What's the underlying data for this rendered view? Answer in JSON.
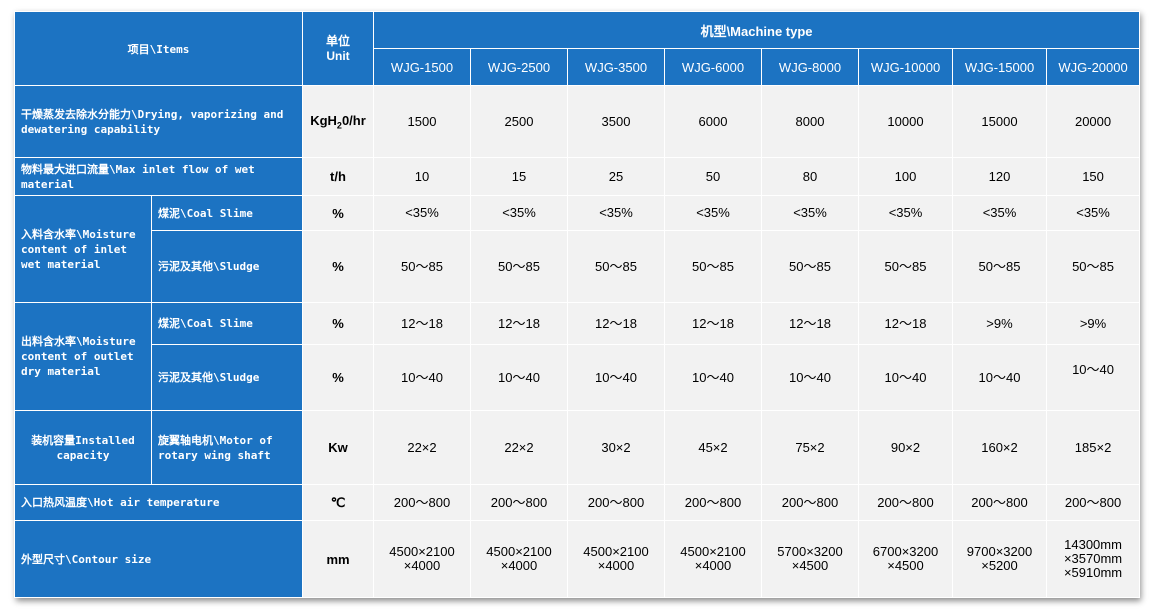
{
  "header": {
    "items": "项目\\Items",
    "unit_cn": "单位",
    "unit_en": "Unit",
    "machine_type": "机型\\Machine type",
    "models": [
      "WJG-1500",
      "WJG-2500",
      "WJG-3500",
      "WJG-6000",
      "WJG-8000",
      "WJG-10000",
      "WJG-15000",
      "WJG-20000"
    ]
  },
  "rows": {
    "drying": {
      "label": "干燥蒸发去除水分能力\\Drying, vaporizing and dewatering capability",
      "unit_pre": "KgH",
      "unit_sub": "2",
      "unit_post": "0/hr",
      "values": [
        "1500",
        "2500",
        "3500",
        "6000",
        "8000",
        "10000",
        "15000",
        "20000"
      ]
    },
    "inlet_flow": {
      "label": "物料最大进口流量\\Max inlet flow of wet material",
      "unit": "t/h",
      "values": [
        "10",
        "15",
        "25",
        "50",
        "80",
        "100",
        "120",
        "150"
      ]
    },
    "inlet_moisture": {
      "label": "入料含水率\\Moisture content of inlet wet material",
      "coal": {
        "label": "煤泥\\Coal Slime",
        "unit": "%",
        "values": [
          "<35%",
          "<35%",
          "<35%",
          "<35%",
          "<35%",
          "<35%",
          "<35%",
          "<35%"
        ]
      },
      "sludge": {
        "label": "污泥及其他\\Sludge",
        "unit": "%",
        "values": [
          "50～85",
          "50～85",
          "50～85",
          "50～85",
          "50～85",
          "50～85",
          "50～85",
          "50～85"
        ]
      }
    },
    "outlet_moisture": {
      "label": "出料含水率\\Moisture content of outlet dry material",
      "coal": {
        "label": "煤泥\\Coal Slime",
        "unit": "%",
        "values": [
          "12～18",
          "12～18",
          "12～18",
          "12～18",
          "12～18",
          "12～18",
          ">9%",
          ">9%"
        ]
      },
      "sludge": {
        "label": "污泥及其他\\Sludge",
        "unit": "%",
        "values": [
          "10～40",
          "10～40",
          "10～40",
          "10～40",
          "10～40",
          "10～40",
          "10～40",
          "10～40"
        ]
      }
    },
    "installed": {
      "label": "装机容量Installed capacity",
      "sub": "旋翼轴电机\\Motor of rotary wing shaft",
      "unit": "Kw",
      "values": [
        "22×2",
        "22×2",
        "30×2",
        "45×2",
        "75×2",
        "90×2",
        "160×2",
        "185×2"
      ]
    },
    "hot_air": {
      "label": "入口热风温度\\Hot air temperature",
      "unit": "℃",
      "values": [
        "200～800",
        "200～800",
        "200～800",
        "200～800",
        "200～800",
        "200～800",
        "200～800",
        "200～800"
      ]
    },
    "contour": {
      "label": "外型尺寸\\Contour size",
      "unit": "mm",
      "values": [
        [
          "4500×2100",
          "×4000"
        ],
        [
          "4500×2100",
          "×4000"
        ],
        [
          "4500×2100",
          "×4000"
        ],
        [
          "4500×2100",
          "×4000"
        ],
        [
          "5700×3200",
          "×4500"
        ],
        [
          "6700×3200",
          "×4500"
        ],
        [
          "9700×3200",
          "×5200"
        ],
        [
          "14300mm",
          "×3570mm",
          "×5910mm"
        ]
      ]
    }
  }
}
